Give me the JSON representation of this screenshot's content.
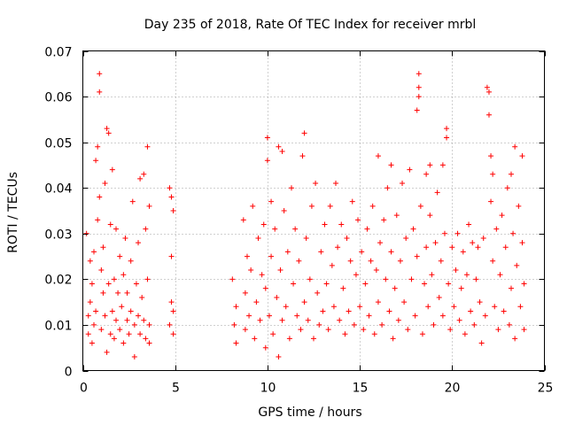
{
  "chart_data": {
    "type": "scatter",
    "title": "Day 235 of 2018, Rate Of TEC Index for receiver mrbl",
    "xlabel": "GPS time / hours",
    "ylabel": "ROTI / TECUs",
    "xlim": [
      0,
      25
    ],
    "ylim": [
      0,
      0.07
    ],
    "xticks": [
      0,
      5,
      10,
      15,
      20,
      25
    ],
    "xtick_labels": [
      "0",
      "5",
      "10",
      "15",
      "20",
      "25"
    ],
    "yticks": [
      0,
      0.01,
      0.02,
      0.03,
      0.04,
      0.05,
      0.06,
      0.07
    ],
    "ytick_labels": [
      "0",
      "0.01",
      "0.02",
      "0.03",
      "0.04",
      "0.05",
      "0.06",
      "0.07"
    ],
    "grid": true,
    "marker": "+",
    "color": "#ff0000",
    "series": [
      {
        "name": "ROTI",
        "points": [
          [
            0.2,
            0.03
          ],
          [
            0.3,
            0.012
          ],
          [
            0.3,
            0.008
          ],
          [
            0.4,
            0.015
          ],
          [
            0.4,
            0.024
          ],
          [
            0.5,
            0.006
          ],
          [
            0.5,
            0.019
          ],
          [
            0.6,
            0.01
          ],
          [
            0.6,
            0.026
          ],
          [
            0.7,
            0.013
          ],
          [
            0.7,
            0.046
          ],
          [
            0.8,
            0.049
          ],
          [
            0.8,
            0.033
          ],
          [
            0.9,
            0.065
          ],
          [
            0.9,
            0.061
          ],
          [
            0.9,
            0.038
          ],
          [
            1.0,
            0.022
          ],
          [
            1.0,
            0.009
          ],
          [
            1.1,
            0.017
          ],
          [
            1.1,
            0.027
          ],
          [
            1.2,
            0.041
          ],
          [
            1.2,
            0.012
          ],
          [
            1.3,
            0.053
          ],
          [
            1.3,
            0.004
          ],
          [
            1.4,
            0.052
          ],
          [
            1.4,
            0.019
          ],
          [
            1.5,
            0.008
          ],
          [
            1.5,
            0.032
          ],
          [
            1.6,
            0.013
          ],
          [
            1.6,
            0.044
          ],
          [
            1.7,
            0.02
          ],
          [
            1.7,
            0.007
          ],
          [
            1.8,
            0.011
          ],
          [
            1.8,
            0.031
          ],
          [
            1.9,
            0.017
          ],
          [
            2.0,
            0.009
          ],
          [
            2.0,
            0.025
          ],
          [
            2.1,
            0.014
          ],
          [
            2.2,
            0.021
          ],
          [
            2.2,
            0.006
          ],
          [
            2.3,
            0.029
          ],
          [
            2.4,
            0.011
          ],
          [
            2.4,
            0.017
          ],
          [
            2.5,
            0.008
          ],
          [
            2.6,
            0.024
          ],
          [
            2.6,
            0.013
          ],
          [
            2.7,
            0.037
          ],
          [
            2.8,
            0.01
          ],
          [
            2.8,
            0.003
          ],
          [
            2.9,
            0.019
          ],
          [
            3.0,
            0.012
          ],
          [
            3.0,
            0.028
          ],
          [
            3.1,
            0.042
          ],
          [
            3.1,
            0.008
          ],
          [
            3.2,
            0.016
          ],
          [
            3.3,
            0.043
          ],
          [
            3.3,
            0.011
          ],
          [
            3.4,
            0.031
          ],
          [
            3.4,
            0.007
          ],
          [
            3.5,
            0.049
          ],
          [
            3.5,
            0.02
          ],
          [
            3.6,
            0.036
          ],
          [
            3.6,
            0.01
          ],
          [
            3.6,
            0.006
          ],
          [
            4.7,
            0.04
          ],
          [
            4.7,
            0.01
          ],
          [
            4.8,
            0.038
          ],
          [
            4.8,
            0.025
          ],
          [
            4.8,
            0.015
          ],
          [
            4.9,
            0.008
          ],
          [
            4.9,
            0.035
          ],
          [
            4.9,
            0.013
          ],
          [
            8.1,
            0.02
          ],
          [
            8.2,
            0.01
          ],
          [
            8.3,
            0.014
          ],
          [
            8.3,
            0.006
          ],
          [
            8.7,
            0.033
          ],
          [
            8.8,
            0.017
          ],
          [
            8.8,
            0.009
          ],
          [
            8.9,
            0.025
          ],
          [
            9.0,
            0.012
          ],
          [
            9.1,
            0.022
          ],
          [
            9.2,
            0.036
          ],
          [
            9.3,
            0.007
          ],
          [
            9.4,
            0.015
          ],
          [
            9.5,
            0.029
          ],
          [
            9.6,
            0.011
          ],
          [
            9.7,
            0.021
          ],
          [
            9.8,
            0.032
          ],
          [
            9.9,
            0.005
          ],
          [
            9.9,
            0.018
          ],
          [
            10.0,
            0.051
          ],
          [
            10.0,
            0.046
          ],
          [
            10.1,
            0.012
          ],
          [
            10.2,
            0.037
          ],
          [
            10.2,
            0.025
          ],
          [
            10.3,
            0.008
          ],
          [
            10.4,
            0.031
          ],
          [
            10.5,
            0.016
          ],
          [
            10.6,
            0.049
          ],
          [
            10.6,
            0.003
          ],
          [
            10.7,
            0.022
          ],
          [
            10.8,
            0.048
          ],
          [
            10.8,
            0.011
          ],
          [
            10.9,
            0.035
          ],
          [
            11.0,
            0.014
          ],
          [
            11.1,
            0.026
          ],
          [
            11.2,
            0.007
          ],
          [
            11.3,
            0.04
          ],
          [
            11.4,
            0.019
          ],
          [
            11.5,
            0.031
          ],
          [
            11.6,
            0.012
          ],
          [
            11.7,
            0.024
          ],
          [
            11.8,
            0.009
          ],
          [
            11.9,
            0.047
          ],
          [
            12.0,
            0.052
          ],
          [
            12.0,
            0.015
          ],
          [
            12.1,
            0.029
          ],
          [
            12.2,
            0.011
          ],
          [
            12.3,
            0.02
          ],
          [
            12.4,
            0.036
          ],
          [
            12.5,
            0.007
          ],
          [
            12.6,
            0.041
          ],
          [
            12.7,
            0.017
          ],
          [
            12.8,
            0.01
          ],
          [
            12.9,
            0.026
          ],
          [
            13.0,
            0.013
          ],
          [
            13.1,
            0.032
          ],
          [
            13.2,
            0.019
          ],
          [
            13.3,
            0.009
          ],
          [
            13.4,
            0.036
          ],
          [
            13.5,
            0.023
          ],
          [
            13.6,
            0.014
          ],
          [
            13.7,
            0.041
          ],
          [
            13.8,
            0.027
          ],
          [
            13.9,
            0.011
          ],
          [
            14.0,
            0.032
          ],
          [
            14.1,
            0.018
          ],
          [
            14.2,
            0.008
          ],
          [
            14.3,
            0.029
          ],
          [
            14.4,
            0.013
          ],
          [
            14.5,
            0.024
          ],
          [
            14.6,
            0.037
          ],
          [
            14.7,
            0.01
          ],
          [
            14.8,
            0.021
          ],
          [
            14.9,
            0.033
          ],
          [
            15.0,
            0.014
          ],
          [
            15.1,
            0.026
          ],
          [
            15.2,
            0.009
          ],
          [
            15.3,
            0.019
          ],
          [
            15.4,
            0.031
          ],
          [
            15.5,
            0.012
          ],
          [
            15.6,
            0.024
          ],
          [
            15.7,
            0.036
          ],
          [
            15.8,
            0.008
          ],
          [
            15.9,
            0.022
          ],
          [
            16.0,
            0.047
          ],
          [
            16.0,
            0.015
          ],
          [
            16.1,
            0.028
          ],
          [
            16.2,
            0.01
          ],
          [
            16.3,
            0.033
          ],
          [
            16.4,
            0.02
          ],
          [
            16.5,
            0.04
          ],
          [
            16.6,
            0.013
          ],
          [
            16.7,
            0.045
          ],
          [
            16.7,
            0.026
          ],
          [
            16.8,
            0.007
          ],
          [
            16.9,
            0.018
          ],
          [
            17.0,
            0.034
          ],
          [
            17.1,
            0.011
          ],
          [
            17.2,
            0.024
          ],
          [
            17.3,
            0.041
          ],
          [
            17.4,
            0.015
          ],
          [
            17.5,
            0.029
          ],
          [
            17.6,
            0.009
          ],
          [
            17.7,
            0.044
          ],
          [
            17.8,
            0.02
          ],
          [
            17.9,
            0.031
          ],
          [
            18.0,
            0.012
          ],
          [
            18.1,
            0.057
          ],
          [
            18.1,
            0.025
          ],
          [
            18.2,
            0.065
          ],
          [
            18.2,
            0.062
          ],
          [
            18.2,
            0.06
          ],
          [
            18.3,
            0.036
          ],
          [
            18.4,
            0.008
          ],
          [
            18.5,
            0.019
          ],
          [
            18.6,
            0.043
          ],
          [
            18.6,
            0.027
          ],
          [
            18.7,
            0.014
          ],
          [
            18.8,
            0.045
          ],
          [
            18.8,
            0.034
          ],
          [
            18.9,
            0.021
          ],
          [
            19.0,
            0.01
          ],
          [
            19.1,
            0.028
          ],
          [
            19.2,
            0.039
          ],
          [
            19.3,
            0.016
          ],
          [
            19.4,
            0.024
          ],
          [
            19.5,
            0.045
          ],
          [
            19.5,
            0.012
          ],
          [
            19.6,
            0.03
          ],
          [
            19.7,
            0.053
          ],
          [
            19.7,
            0.051
          ],
          [
            19.8,
            0.019
          ],
          [
            19.9,
            0.009
          ],
          [
            20.0,
            0.027
          ],
          [
            20.1,
            0.014
          ],
          [
            20.2,
            0.022
          ],
          [
            20.3,
            0.03
          ],
          [
            20.4,
            0.011
          ],
          [
            20.5,
            0.018
          ],
          [
            20.6,
            0.026
          ],
          [
            20.7,
            0.008
          ],
          [
            20.8,
            0.021
          ],
          [
            20.9,
            0.032
          ],
          [
            21.0,
            0.013
          ],
          [
            21.1,
            0.028
          ],
          [
            21.2,
            0.01
          ],
          [
            21.3,
            0.02
          ],
          [
            21.4,
            0.027
          ],
          [
            21.5,
            0.015
          ],
          [
            21.6,
            0.006
          ],
          [
            21.7,
            0.029
          ],
          [
            21.8,
            0.012
          ],
          [
            21.9,
            0.062
          ],
          [
            22.0,
            0.061
          ],
          [
            22.0,
            0.056
          ],
          [
            22.1,
            0.047
          ],
          [
            22.1,
            0.037
          ],
          [
            22.2,
            0.024
          ],
          [
            22.2,
            0.043
          ],
          [
            22.3,
            0.014
          ],
          [
            22.4,
            0.031
          ],
          [
            22.5,
            0.009
          ],
          [
            22.6,
            0.021
          ],
          [
            22.7,
            0.034
          ],
          [
            22.8,
            0.013
          ],
          [
            22.9,
            0.027
          ],
          [
            23.0,
            0.04
          ],
          [
            23.1,
            0.01
          ],
          [
            23.2,
            0.043
          ],
          [
            23.2,
            0.018
          ],
          [
            23.3,
            0.03
          ],
          [
            23.4,
            0.049
          ],
          [
            23.4,
            0.007
          ],
          [
            23.5,
            0.023
          ],
          [
            23.6,
            0.036
          ],
          [
            23.7,
            0.014
          ],
          [
            23.8,
            0.047
          ],
          [
            23.8,
            0.028
          ],
          [
            23.9,
            0.009
          ],
          [
            23.9,
            0.019
          ]
        ]
      }
    ]
  }
}
